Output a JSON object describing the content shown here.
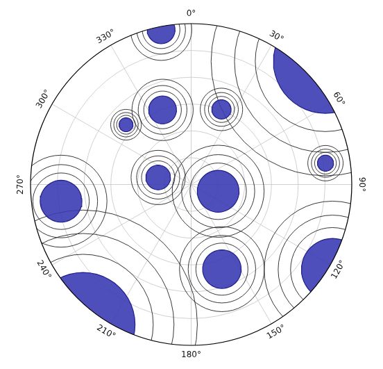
{
  "chart_data": {
    "type": "polar_map",
    "lon_ticks": [
      {
        "value": 0,
        "label": "0°"
      },
      {
        "value": 30,
        "label": "30°"
      },
      {
        "value": 60,
        "label": "60°"
      },
      {
        "value": 90,
        "label": "90°"
      },
      {
        "value": 120,
        "label": "120°"
      },
      {
        "value": 150,
        "label": "150°"
      },
      {
        "value": 180,
        "label": "180°"
      },
      {
        "value": 210,
        "label": "210°"
      },
      {
        "value": 240,
        "label": "240°"
      },
      {
        "value": 270,
        "label": "270°"
      },
      {
        "value": 300,
        "label": "300°"
      },
      {
        "value": 330,
        "label": "330°"
      }
    ],
    "rlim": [
      0,
      30
    ],
    "rticks": [
      5,
      10,
      15,
      20,
      25,
      30
    ],
    "grid": true,
    "color": "#3c3cb4",
    "regions": [
      {
        "lon": 104,
        "colat": 5.2,
        "radius": 3.9
      },
      {
        "lon": 349,
        "colat": 29.4,
        "radius": 2.6
      },
      {
        "lon": 47.5,
        "colat": 34,
        "radius": 9.7
      },
      {
        "lon": 262.7,
        "colat": 24.5,
        "radius": 3.9
      },
      {
        "lon": 217.7,
        "colat": 33,
        "radius": 9.7
      },
      {
        "lon": 121,
        "colat": 30.8,
        "radius": 5.8
      },
      {
        "lon": 160,
        "colat": 16.8,
        "radius": 3.6
      },
      {
        "lon": 282,
        "colat": 6.3,
        "radius": 2.3
      },
      {
        "lon": 22,
        "colat": 15.1,
        "radius": 1.8
      },
      {
        "lon": 81,
        "colat": 25.4,
        "radius": 1.5
      },
      {
        "lon": 339,
        "colat": 14.9,
        "radius": 2.6
      },
      {
        "lon": 312.5,
        "colat": 16.5,
        "radius": 1.3
      }
    ]
  }
}
